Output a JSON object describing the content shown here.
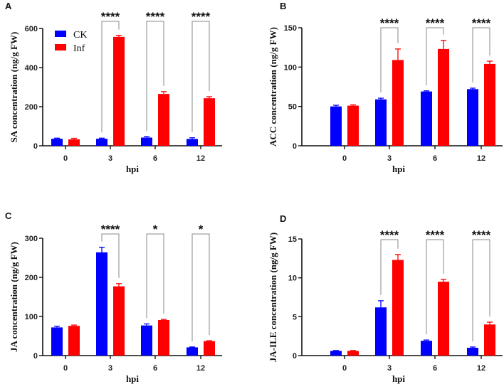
{
  "colors": {
    "CK": "#0000ff",
    "Inf": "#ff0000",
    "bracket": "#888888",
    "axis": "#111111"
  },
  "legend": {
    "series": [
      "CK",
      "Inf"
    ],
    "placement": "top-left of panel A"
  },
  "chart_data": [
    {
      "panel": "A",
      "type": "bar",
      "categories": [
        "0",
        "3",
        "6",
        "12"
      ],
      "xlabel": "hpi",
      "ylabel": "SA concentration (ng/g FW)",
      "ylim": [
        0,
        600
      ],
      "yticks": [
        "0",
        "200",
        "400",
        "600"
      ],
      "series": [
        {
          "name": "CK",
          "values": [
            36,
            36,
            42,
            35
          ],
          "errors": [
            3,
            3,
            5,
            6
          ]
        },
        {
          "name": "Inf",
          "values": [
            33,
            557,
            265,
            243
          ],
          "errors": [
            5,
            8,
            12,
            8
          ]
        }
      ],
      "significance": [
        "",
        "****",
        "****",
        "****"
      ]
    },
    {
      "panel": "B",
      "type": "bar",
      "categories": [
        "0",
        "3",
        "6",
        "12"
      ],
      "xlabel": "hpi",
      "ylabel": "ACC concentration (ng/g FW)",
      "ylim": [
        0,
        150
      ],
      "yticks": [
        "0",
        "50",
        "100",
        "150"
      ],
      "series": [
        {
          "name": "CK",
          "values": [
            50,
            59,
            69,
            72
          ],
          "errors": [
            1.5,
            1.5,
            0.8,
            1.2
          ]
        },
        {
          "name": "Inf",
          "values": [
            51,
            109,
            123,
            104
          ],
          "errors": [
            1,
            14,
            11,
            3.5
          ]
        }
      ],
      "significance": [
        "",
        "****",
        "****",
        "****"
      ]
    },
    {
      "panel": "C",
      "type": "bar",
      "categories": [
        "0",
        "3",
        "6",
        "12"
      ],
      "xlabel": "hpi",
      "ylabel": "JA concentration (ng/g FW)",
      "ylim": [
        0,
        300
      ],
      "yticks": [
        "0",
        "100",
        "200",
        "300"
      ],
      "series": [
        {
          "name": "CK",
          "values": [
            72,
            264,
            77,
            21
          ],
          "errors": [
            3,
            13,
            4,
            1
          ]
        },
        {
          "name": "Inf",
          "values": [
            76,
            177,
            91,
            37
          ],
          "errors": [
            2,
            7,
            1.5,
            1
          ]
        }
      ],
      "significance": [
        "",
        "****",
        "*",
        "*"
      ]
    },
    {
      "panel": "D",
      "type": "bar",
      "categories": [
        "0",
        "3",
        "6",
        "12"
      ],
      "xlabel": "hpi",
      "ylabel": "JA-ILE concentration (ng/g  FW)",
      "ylim": [
        0,
        15
      ],
      "yticks": [
        "0",
        "5",
        "10",
        "15"
      ],
      "series": [
        {
          "name": "CK",
          "values": [
            0.6,
            6.2,
            1.9,
            1.0
          ],
          "errors": [
            0.05,
            0.85,
            0.1,
            0.1
          ]
        },
        {
          "name": "Inf",
          "values": [
            0.6,
            12.3,
            9.5,
            4.0
          ],
          "errors": [
            0.05,
            0.7,
            0.3,
            0.3
          ]
        }
      ],
      "significance": [
        "",
        "****",
        "****",
        "****"
      ]
    }
  ]
}
